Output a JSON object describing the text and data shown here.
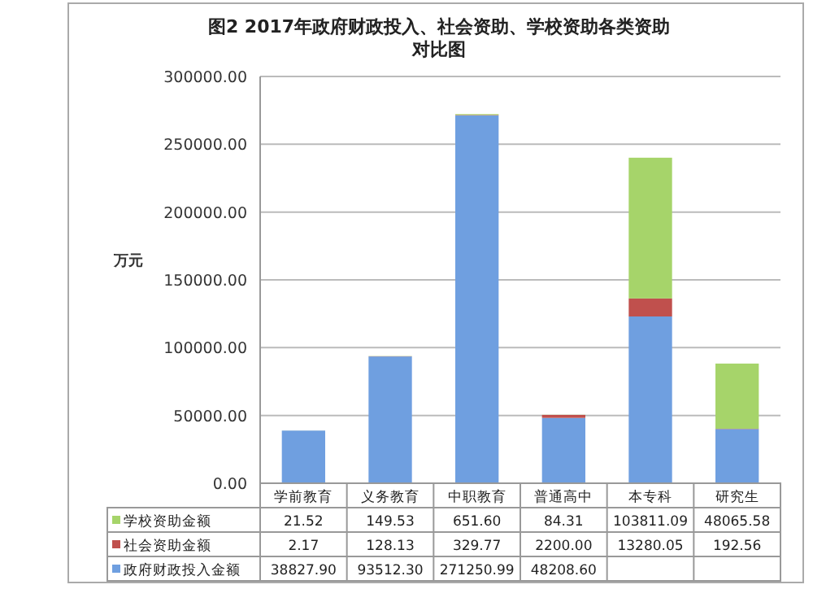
{
  "chart_data": {
    "type": "bar",
    "stacked": true,
    "title": "图2 2017年政府财政投入、社会资助、学校资助各类资助对比图",
    "ylabel": "万元",
    "categories": [
      "学前教育",
      "义务教育",
      "中职教育",
      "普通高中",
      "本专科",
      "研究生"
    ],
    "series": [
      {
        "name": "政府财政投入金额",
        "color": "#6f9fe0",
        "values": [
          38827.9,
          93512.3,
          271250.99,
          48208.6,
          123000,
          40000
        ],
        "value_labels": [
          "38827.90",
          "93512.30",
          "271250.99",
          "48208.60",
          null,
          null
        ]
      },
      {
        "name": "社会资助金额",
        "color": "#c0504d",
        "values": [
          2.17,
          128.13,
          329.77,
          2200.0,
          13280.05,
          192.56
        ],
        "value_labels": [
          "2.17",
          "128.13",
          "329.77",
          "2200.00",
          "13280.05",
          "192.56"
        ]
      },
      {
        "name": "学校资助金额",
        "color": "#a6d46a",
        "values": [
          21.52,
          149.53,
          651.6,
          84.31,
          103811.09,
          48065.58
        ],
        "value_labels": [
          "21.52",
          "149.53",
          "651.60",
          "84.31",
          "103811.09",
          "48065.58"
        ]
      }
    ],
    "ylim": [
      0,
      300000
    ],
    "yticks": [
      {
        "value": 0,
        "label": "0.00"
      },
      {
        "value": 50000,
        "label": "50000.00"
      },
      {
        "value": 100000,
        "label": "100000.00"
      },
      {
        "value": 150000,
        "label": "150000.00"
      },
      {
        "value": 200000,
        "label": "200000.00"
      },
      {
        "value": 250000,
        "label": "250000.00"
      },
      {
        "value": 300000,
        "label": "300000.00"
      }
    ],
    "grid": "y",
    "legend": "bottom"
  }
}
